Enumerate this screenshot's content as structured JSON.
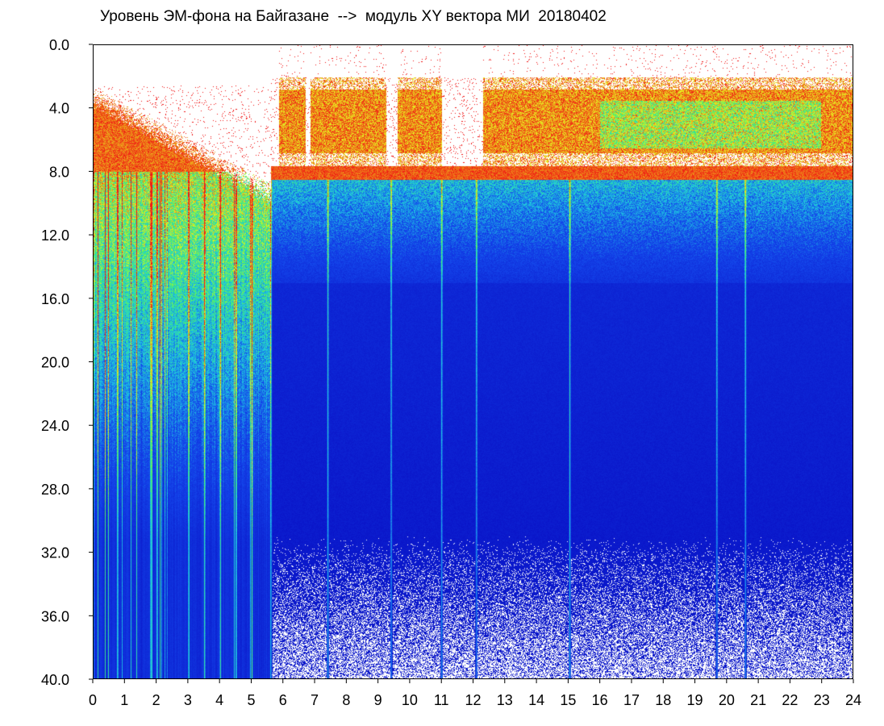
{
  "chart_data": {
    "type": "heatmap",
    "title": "Уровень ЭМ-фона на Байгазане  -->  модуль XY вектора МИ  20180402",
    "xlabel": "",
    "ylabel": "",
    "xlim": [
      0,
      24
    ],
    "ylim": [
      0,
      40
    ],
    "y_inverted": true,
    "x_ticks": [
      "0",
      "1",
      "2",
      "3",
      "4",
      "5",
      "6",
      "7",
      "8",
      "9",
      "10",
      "11",
      "12",
      "13",
      "14",
      "15",
      "16",
      "17",
      "18",
      "19",
      "20",
      "21",
      "22",
      "23",
      "24"
    ],
    "y_ticks": [
      "0.0",
      "4.0",
      "8.0",
      "12.0",
      "16.0",
      "20.0",
      "24.0",
      "28.0",
      "32.0",
      "36.0",
      "40.0"
    ],
    "grid": false,
    "colormap": [
      "#0a14c8",
      "#1a4ee6",
      "#20c8e0",
      "#4af06a",
      "#e8f020",
      "#f01010"
    ],
    "background_color": "#ffffff",
    "regions": [
      {
        "x_range": [
          0,
          5.6
        ],
        "lower_edge": 8.0,
        "upper_noise_top": 3.0,
        "description_level": "broadband high"
      },
      {
        "x_range": [
          5.6,
          24
        ],
        "lower_edge": 8.0,
        "upper_band": [
          2.0,
          7.5
        ],
        "mid_band": [
          8.0,
          15.0
        ]
      }
    ],
    "vertical_streaks": [
      0.75,
      1.8,
      2.0,
      3.0,
      3.5,
      4.0,
      4.5,
      5.0,
      5.6,
      7.4,
      9.4,
      11.0,
      12.1,
      15.05,
      19.7,
      20.6
    ]
  }
}
